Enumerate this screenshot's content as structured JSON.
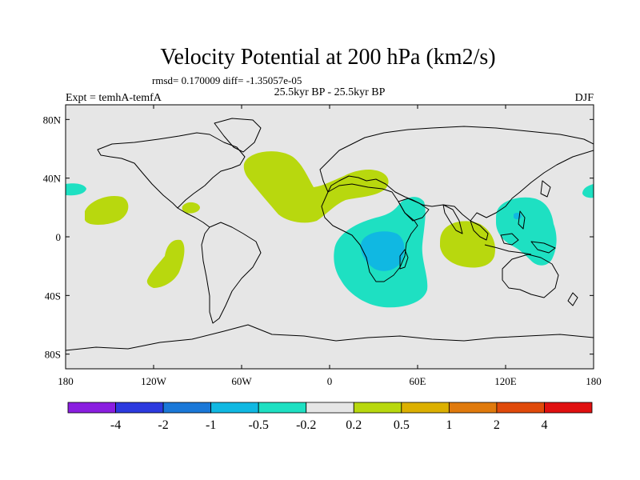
{
  "title": "Velocity Potential at 200 hPa (km2/s)",
  "stats": "rmsd= 0.170009 diff= -1.35057e-05",
  "experiment": "Expt = temhA-temfA",
  "period": "25.5kyr BP - 25.5kyr BP",
  "season": "DJF",
  "map": {
    "lat_range": [
      -90,
      90
    ],
    "lon_range": [
      -180,
      180
    ],
    "lat_ticks": [
      {
        "value": 80,
        "label": "80N"
      },
      {
        "value": 40,
        "label": "40N"
      },
      {
        "value": 0,
        "label": "0"
      },
      {
        "value": -40,
        "label": "40S"
      },
      {
        "value": -80,
        "label": "80S"
      }
    ],
    "lon_ticks": [
      {
        "value": -180,
        "label": "180"
      },
      {
        "value": -120,
        "label": "120W"
      },
      {
        "value": -60,
        "label": "60W"
      },
      {
        "value": 0,
        "label": "0"
      },
      {
        "value": 60,
        "label": "60E"
      },
      {
        "value": 120,
        "label": "120E"
      },
      {
        "value": 180,
        "label": "180"
      }
    ],
    "background_color": "#e6e6e6"
  },
  "colorbar": {
    "labels": [
      "-4",
      "-2",
      "-1",
      "-0.5",
      "-0.2",
      "0.2",
      "0.5",
      "1",
      "2",
      "4"
    ],
    "colors": [
      "#8a1ee0",
      "#2c3adf",
      "#1a78d8",
      "#10b8e2",
      "#1ee0c2",
      "#e6e6e6",
      "#b8d80e",
      "#dcb000",
      "#e07a0c",
      "#e04a0a",
      "#e01010"
    ]
  },
  "colors": {
    "cyan": "#1ee0c2",
    "light_blue": "#10b8e2",
    "lime": "#b8d80e"
  }
}
